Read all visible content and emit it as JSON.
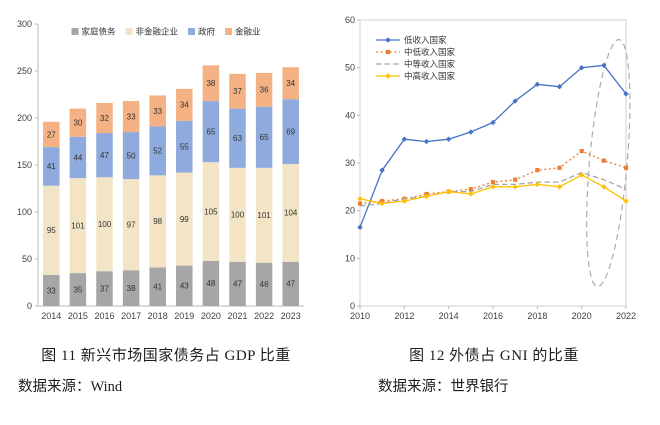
{
  "captions": {
    "chart1_title": "图 11  新兴市场国家债务占 GDP 比重",
    "chart1_source": "数据来源：Wind",
    "chart2_title": "图 12  外债占 GNI 的比重",
    "chart2_source": "数据来源：世界银行"
  },
  "chart_data": [
    {
      "type": "bar",
      "stacked": true,
      "title": "新兴市场国家债务占 GDP 比重",
      "categories": [
        "2014",
        "2015",
        "2016",
        "2017",
        "2018",
        "2019",
        "2020",
        "2021",
        "2022",
        "2023"
      ],
      "series": [
        {
          "name": "家庭债务",
          "color": "#a6a6a6",
          "values": [
            33,
            35,
            37,
            38,
            41,
            43,
            48,
            47,
            46,
            47
          ]
        },
        {
          "name": "非金融企业",
          "color": "#f2e4c4",
          "values": [
            95,
            101,
            100,
            97,
            98,
            99,
            105,
            100,
            101,
            104
          ]
        },
        {
          "name": "政府",
          "color": "#8faadc",
          "values": [
            41,
            44,
            47,
            50,
            52,
            55,
            65,
            63,
            65,
            69
          ]
        },
        {
          "name": "金融业",
          "color": "#f4b183",
          "values": [
            27,
            30,
            32,
            33,
            33,
            34,
            38,
            37,
            36,
            34
          ]
        }
      ],
      "ylim": [
        0,
        300
      ],
      "ytick": 50,
      "grid": false,
      "legend_position": "top",
      "data_labels": true
    },
    {
      "type": "line",
      "title": "外债占 GNI 的比重",
      "x": [
        2010,
        2011,
        2012,
        2013,
        2014,
        2015,
        2016,
        2017,
        2018,
        2019,
        2020,
        2021,
        2022
      ],
      "xlim": [
        2010,
        2022
      ],
      "xticks": [
        2010,
        2012,
        2014,
        2016,
        2018,
        2020,
        2022
      ],
      "ylim": [
        0,
        60
      ],
      "ytick": 10,
      "grid": false,
      "legend_position": "top-left",
      "series": [
        {
          "name": "低收入国家",
          "color": "#4472c4",
          "style": "solid",
          "marker": "diamond",
          "values": [
            16.5,
            28.5,
            35,
            34.5,
            35,
            36.5,
            38.5,
            43,
            46.5,
            46,
            50,
            50.5,
            44.5
          ]
        },
        {
          "name": "中低收入国家",
          "color": "#ed7d31",
          "style": "dotted",
          "marker": "square",
          "values": [
            21.5,
            22,
            22.5,
            23.5,
            24,
            24.5,
            26,
            26.5,
            28.5,
            29,
            32.5,
            30.5,
            29
          ]
        },
        {
          "name": "中等收入国家",
          "color": "#a5a5a5",
          "style": "dashed",
          "marker": "none",
          "values": [
            21,
            21.5,
            22.5,
            23,
            24,
            24,
            25.5,
            25.5,
            26,
            26,
            28,
            26.5,
            24.5
          ]
        },
        {
          "name": "中高收入国家",
          "color": "#ffc000",
          "style": "solid",
          "marker": "diamond",
          "values": [
            22.5,
            21.5,
            22,
            23,
            24,
            23.5,
            25,
            25,
            25.5,
            25,
            27.5,
            25,
            22
          ]
        }
      ],
      "annotation": {
        "shape": "ellipse",
        "x_center": 2021.2,
        "y_center": 30,
        "x_radius_years": 0.85,
        "y_radius_value": 26,
        "rotation_deg": 5,
        "style": "dashed",
        "color": "#ababab",
        "note": "highlight 2020-2022"
      }
    }
  ]
}
